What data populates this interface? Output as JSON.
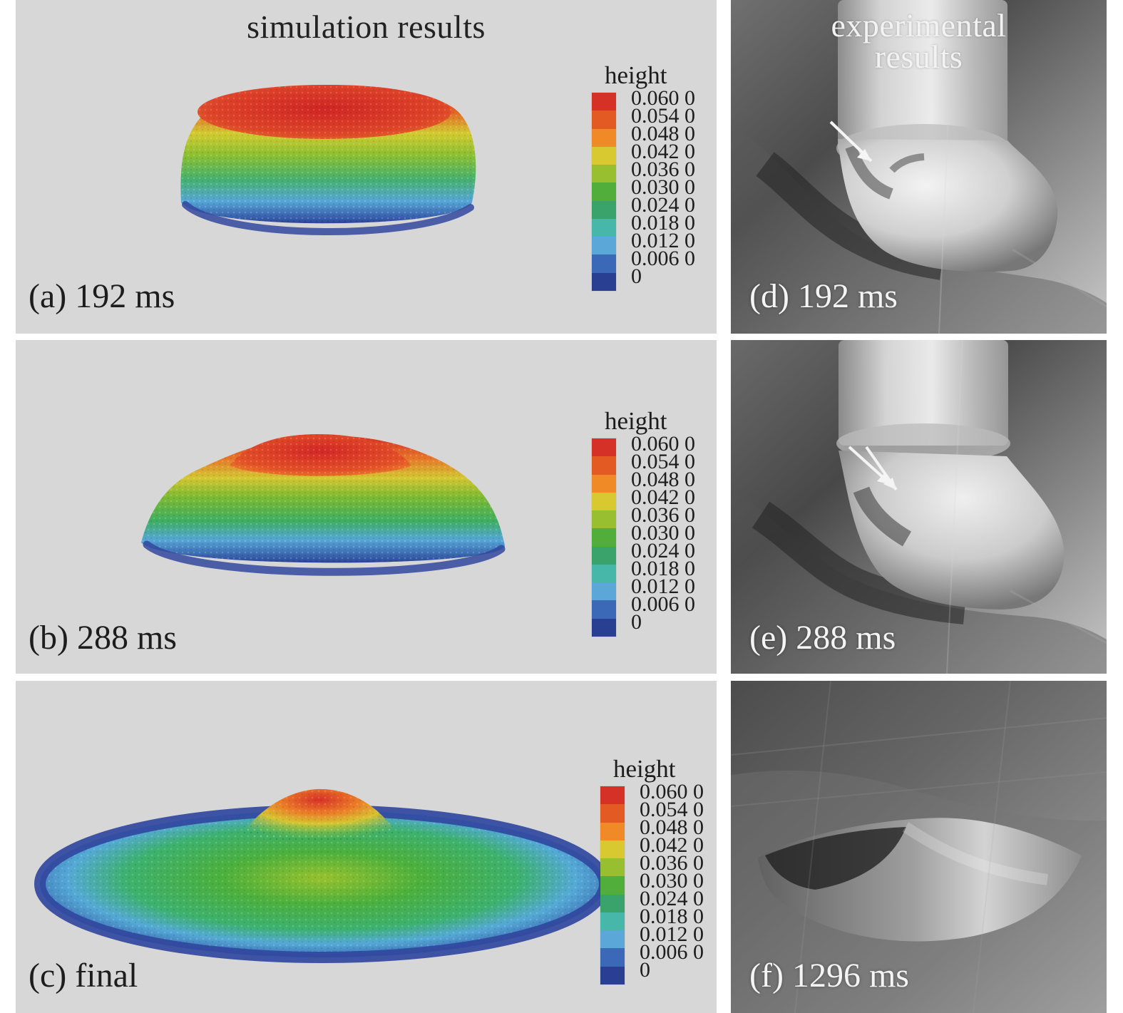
{
  "figure": {
    "headers": {
      "simulation": "simulation results",
      "experimental_lines": [
        "experimental",
        "results"
      ]
    },
    "legend": {
      "title": "height",
      "ticks": [
        "0.060 0",
        "0.054 0",
        "0.048 0",
        "0.042 0",
        "0.036 0",
        "0.030 0",
        "0.024 0",
        "0.018 0",
        "0.012 0",
        "0.006 0",
        "0"
      ],
      "colors": [
        "#d63127",
        "#e45a23",
        "#f08a26",
        "#d9c931",
        "#98bf2f",
        "#52ae3a",
        "#3aa36b",
        "#46b7a8",
        "#5ba7d7",
        "#3c69b7",
        "#293f92"
      ]
    },
    "simulation_panels": [
      {
        "label": "(a) 192 ms"
      },
      {
        "label": "(b) 288 ms"
      },
      {
        "label": "(c) final"
      }
    ],
    "experimental_panels": [
      {
        "label": "(d) 192 ms"
      },
      {
        "label": "(e) 288 ms"
      },
      {
        "label": "(f) 1296 ms"
      }
    ]
  }
}
